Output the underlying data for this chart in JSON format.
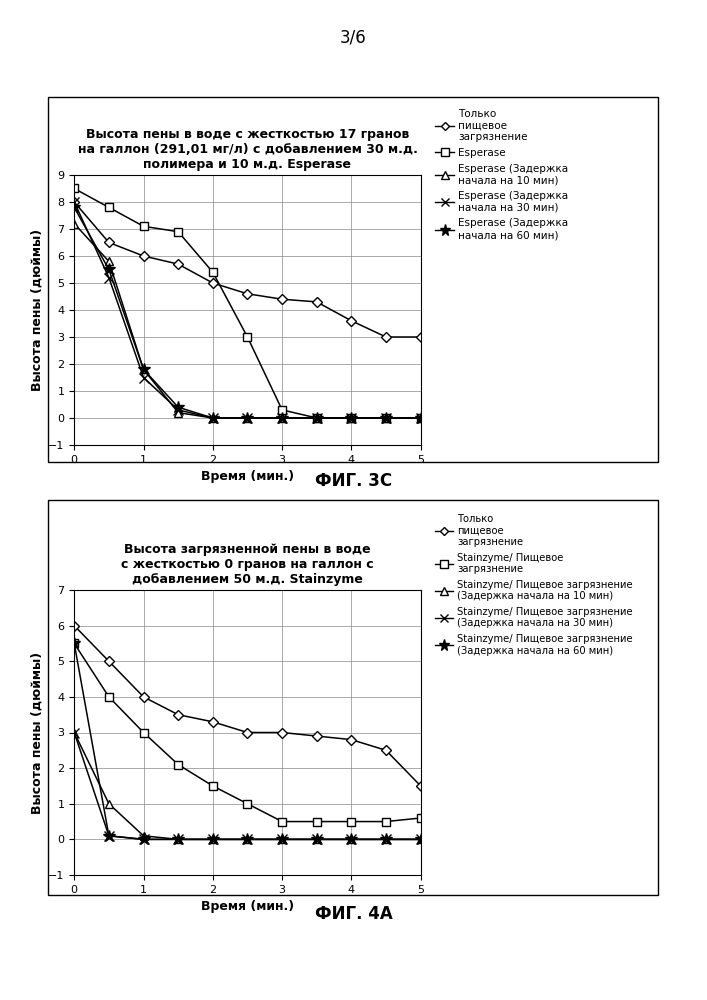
{
  "page_label": "3/6",
  "fig3c": {
    "title": "Высота пены в воде с жесткостью 17 гранов\nна галлон (291,01 мг/л) с добавлением 30 м.д.\nполимера и 10 м.д. Esperase",
    "xlabel": "Время (мин.)",
    "ylabel": "Высота пены (дюймы)",
    "ylim": [
      -1,
      9
    ],
    "xlim": [
      0,
      5
    ],
    "yticks": [
      -1,
      0,
      1,
      2,
      3,
      4,
      5,
      6,
      7,
      8,
      9
    ],
    "xticks": [
      0,
      1,
      2,
      3,
      4,
      5
    ],
    "series": [
      {
        "label": "Только\nпищевое\nзагрязнение",
        "x": [
          0,
          0.5,
          1.0,
          1.5,
          2.0,
          2.5,
          3.0,
          3.5,
          4.0,
          4.5,
          5.0
        ],
        "y": [
          8.0,
          6.5,
          6.0,
          5.7,
          5.0,
          4.6,
          4.4,
          4.3,
          3.6,
          3.0,
          3.0
        ],
        "marker": "D",
        "markersize": 5,
        "linestyle": "-",
        "color": "#000000",
        "markerfacecolor": "white"
      },
      {
        "label": "Esperase",
        "x": [
          0,
          0.5,
          1.0,
          1.5,
          2.0,
          2.5,
          3.0,
          3.5,
          4.0,
          4.5,
          5.0
        ],
        "y": [
          8.5,
          7.8,
          7.1,
          6.9,
          5.4,
          3.0,
          0.3,
          0.0,
          0.0,
          0.0,
          0.0
        ],
        "marker": "s",
        "markersize": 6,
        "linestyle": "-",
        "color": "#000000",
        "markerfacecolor": "white"
      },
      {
        "label": "Esperase (Задержка\nначала на 10 мин)",
        "x": [
          0,
          0.5,
          1.0,
          1.5,
          2.0,
          2.5,
          3.0,
          3.5,
          4.0,
          4.5,
          5.0
        ],
        "y": [
          7.2,
          5.8,
          1.8,
          0.2,
          0.0,
          0.0,
          0.0,
          0.0,
          0.0,
          0.0,
          0.0
        ],
        "marker": "^",
        "markersize": 6,
        "linestyle": "-",
        "color": "#000000",
        "markerfacecolor": "white"
      },
      {
        "label": "Esperase (Задержка\nначала на 30 мин)",
        "x": [
          0,
          0.5,
          1.0,
          1.5,
          2.0,
          2.5,
          3.0,
          3.5,
          4.0,
          4.5,
          5.0
        ],
        "y": [
          8.0,
          5.2,
          1.5,
          0.3,
          0.0,
          0.0,
          0.0,
          0.0,
          0.0,
          0.0,
          0.0
        ],
        "marker": "x",
        "markersize": 7,
        "linestyle": "-",
        "color": "#000000",
        "markerfacecolor": "#000000"
      },
      {
        "label": "Esperase (Задержка\nначала на 60 мин)",
        "x": [
          0,
          0.5,
          1.0,
          1.5,
          2.0,
          2.5,
          3.0,
          3.5,
          4.0,
          4.5,
          5.0
        ],
        "y": [
          7.8,
          5.5,
          1.8,
          0.4,
          0.0,
          0.0,
          0.0,
          0.0,
          0.0,
          0.0,
          0.0
        ],
        "marker": "*",
        "markersize": 9,
        "linestyle": "-",
        "color": "#000000",
        "markerfacecolor": "#000000"
      }
    ]
  },
  "fig4a": {
    "title": "Высота загрязненной пены в воде\nс жесткостью 0 гранов на галлон с\nдобавлением 50 м.д. Stainzyme",
    "xlabel": "Время (мин.)",
    "ylabel": "Высота пены (дюймы)",
    "ylim": [
      -1,
      7
    ],
    "xlim": [
      0,
      5
    ],
    "yticks": [
      -1,
      0,
      1,
      2,
      3,
      4,
      5,
      6,
      7
    ],
    "xticks": [
      0,
      1,
      2,
      3,
      4,
      5
    ],
    "series": [
      {
        "label": "Только\nпищевое\nзагрязнение",
        "x": [
          0,
          0.5,
          1.0,
          1.5,
          2.0,
          2.5,
          3.0,
          3.5,
          4.0,
          4.5,
          5.0
        ],
        "y": [
          6.0,
          5.0,
          4.0,
          3.5,
          3.3,
          3.0,
          3.0,
          2.9,
          2.8,
          2.5,
          1.5
        ],
        "marker": "D",
        "markersize": 5,
        "linestyle": "-",
        "color": "#000000",
        "markerfacecolor": "white"
      },
      {
        "label": "Stainzyme/ Пищевое\nзагрязнение",
        "x": [
          0,
          0.5,
          1.0,
          1.5,
          2.0,
          2.5,
          3.0,
          3.5,
          4.0,
          4.5,
          5.0
        ],
        "y": [
          5.5,
          4.0,
          3.0,
          2.1,
          1.5,
          1.0,
          0.5,
          0.5,
          0.5,
          0.5,
          0.6
        ],
        "marker": "s",
        "markersize": 6,
        "linestyle": "-",
        "color": "#000000",
        "markerfacecolor": "white"
      },
      {
        "label": "Stainzyme/ Пищевое загрязнение\n(Задержка начала на 10 мин)",
        "x": [
          0,
          0.5,
          1.0,
          1.5,
          2.0,
          2.5,
          3.0,
          3.5,
          4.0,
          4.5,
          5.0
        ],
        "y": [
          3.0,
          1.0,
          0.1,
          0.0,
          0.0,
          0.0,
          0.0,
          0.0,
          0.0,
          0.0,
          0.0
        ],
        "marker": "^",
        "markersize": 6,
        "linestyle": "-",
        "color": "#000000",
        "markerfacecolor": "white"
      },
      {
        "label": "Stainzyme/ Пищевое загрязнение\n(Задержка начала на 30 мин)",
        "x": [
          0,
          0.5,
          1.0,
          1.5,
          2.0,
          2.5,
          3.0,
          3.5,
          4.0,
          4.5,
          5.0
        ],
        "y": [
          3.0,
          0.1,
          0.0,
          0.0,
          0.0,
          0.0,
          0.0,
          0.0,
          0.0,
          0.0,
          0.0
        ],
        "marker": "x",
        "markersize": 7,
        "linestyle": "-",
        "color": "#000000",
        "markerfacecolor": "#000000"
      },
      {
        "label": "Stainzyme/ Пищевое загрязнение\n(Задержка начала на 60 мин)",
        "x": [
          0,
          0.5,
          1.0,
          1.5,
          2.0,
          2.5,
          3.0,
          3.5,
          4.0,
          4.5,
          5.0
        ],
        "y": [
          5.5,
          0.1,
          0.0,
          0.0,
          0.0,
          0.0,
          0.0,
          0.0,
          0.0,
          0.0,
          0.0
        ],
        "marker": "*",
        "markersize": 9,
        "linestyle": "-",
        "color": "#000000",
        "markerfacecolor": "#000000"
      }
    ]
  }
}
